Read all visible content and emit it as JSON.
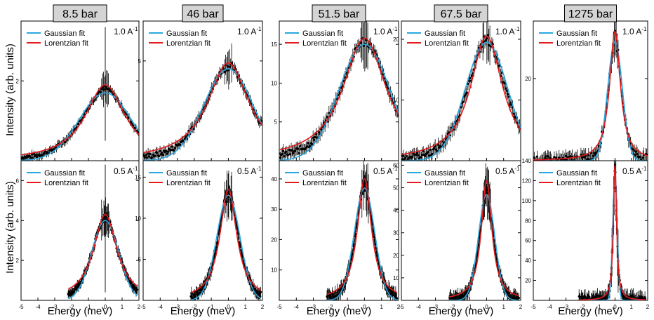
{
  "ylabel": "Intensity (arb. units)",
  "xlabel": "Energy (meV)",
  "legend": {
    "gaussian": "Gaussian fit",
    "lorentzian": "Lorentzian fit"
  },
  "colors": {
    "gaussian": "#29a8e0",
    "lorentzian": "#e41a1c",
    "data": "#000000",
    "header_bg": "#d4d4d4"
  },
  "chart_data": [
    {
      "type": "line",
      "pressure": "8.5 bar",
      "q": "1.0 A",
      "q_exp": "-1",
      "xlim": [
        -5,
        2
      ],
      "xticks": [
        -5,
        -4,
        -3,
        -2,
        -1,
        0,
        1,
        2
      ],
      "ylim": [
        0,
        3.5
      ],
      "yticks": [
        2
      ],
      "gauss_peak": 1.7,
      "gauss_sigma": 1.55,
      "lor_peak": 1.9,
      "lor_gamma": 1.45,
      "data_x_range": [
        -5,
        2
      ]
    },
    {
      "type": "line",
      "pressure": "46 bar",
      "q": "1.0 A",
      "q_exp": "-1",
      "xlim": [
        -5,
        2
      ],
      "xticks": [
        -5,
        -4,
        -3,
        -2,
        -1,
        0,
        1,
        2
      ],
      "ylim": [
        0,
        7
      ],
      "yticks": [
        5
      ],
      "gauss_peak": 4.6,
      "gauss_sigma": 1.45,
      "lor_peak": 4.9,
      "lor_gamma": 1.5,
      "data_x_range": [
        -5,
        2
      ]
    },
    {
      "type": "line",
      "pressure": "51.5 bar",
      "q": "1.0 A",
      "q_exp": "-1",
      "xlim": [
        -5,
        2
      ],
      "xticks": [
        -5,
        -4,
        -3,
        -2,
        -1,
        0,
        1,
        2
      ],
      "ylim": [
        0,
        18
      ],
      "yticks": [
        5,
        10,
        15
      ],
      "gauss_peak": 15.0,
      "gauss_sigma": 1.5,
      "lor_peak": 15.8,
      "lor_gamma": 1.55,
      "data_x_range": [
        -5,
        2
      ]
    },
    {
      "type": "line",
      "pressure": "67.5 bar",
      "q": "1.0 A",
      "q_exp": "-1",
      "xlim": [
        -5,
        2
      ],
      "xticks": [
        -5,
        -4,
        -3,
        -2,
        -1,
        0,
        1,
        2
      ],
      "ylim": [
        0,
        23
      ],
      "yticks": [
        10,
        20
      ],
      "gauss_peak": 19.5,
      "gauss_sigma": 1.25,
      "lor_peak": 20.5,
      "lor_gamma": 1.15,
      "data_x_range": [
        -5,
        2
      ]
    },
    {
      "type": "line",
      "pressure": "1275 bar",
      "q": "1.0 A",
      "q_exp": "-1",
      "xlim": [
        -5,
        2
      ],
      "xticks": [
        -5,
        -4,
        -3,
        -2,
        -1,
        0,
        1,
        2
      ],
      "ylim": [
        0,
        34
      ],
      "yticks": [
        20
      ],
      "gauss_peak": 29.0,
      "gauss_sigma": 0.45,
      "lor_peak": 31.5,
      "lor_gamma": 0.4,
      "data_x_range": [
        -5,
        2
      ]
    },
    {
      "type": "line",
      "pressure": "8.5 bar",
      "q": "0.5 A",
      "q_exp": "-1",
      "xlim": [
        -5,
        2
      ],
      "xticks": [
        -5,
        -4,
        -3,
        -2,
        -1,
        0,
        1,
        2
      ],
      "ylim": [
        0,
        7
      ],
      "yticks": [
        2,
        4,
        6
      ],
      "gauss_peak": 4.0,
      "gauss_sigma": 0.8,
      "lor_peak": 4.3,
      "lor_gamma": 0.85,
      "data_x_range": [
        -2.2,
        1.9
      ]
    },
    {
      "type": "line",
      "pressure": "46 bar",
      "q": "0.5 A",
      "q_exp": "-1",
      "xlim": [
        -5,
        2
      ],
      "xticks": [
        -5,
        -4,
        -3,
        -2,
        -1,
        0,
        1,
        2
      ],
      "ylim": [
        0,
        17
      ],
      "yticks": [
        5,
        10,
        15
      ],
      "gauss_peak": 12.8,
      "gauss_sigma": 0.68,
      "lor_peak": 13.5,
      "lor_gamma": 0.6,
      "data_x_range": [
        -2.2,
        1.9
      ]
    },
    {
      "type": "line",
      "pressure": "51.5 bar",
      "q": "0.5 A",
      "q_exp": "-1",
      "xlim": [
        -5,
        2
      ],
      "xticks": [
        -5,
        -4,
        -3,
        -2,
        -1,
        0,
        1,
        2
      ],
      "ylim": [
        0,
        46
      ],
      "yticks": [
        10,
        20,
        30,
        40
      ],
      "gauss_peak": 37.0,
      "gauss_sigma": 0.6,
      "lor_peak": 40.0,
      "lor_gamma": 0.5,
      "data_x_range": [
        -2.2,
        1.9
      ]
    },
    {
      "type": "line",
      "pressure": "67.5 bar",
      "q": "0.5 A",
      "q_exp": "-1",
      "xlim": [
        -5,
        2
      ],
      "xticks": [
        -5,
        -4,
        -3,
        -2,
        -1,
        0,
        1,
        2
      ],
      "ylim": [
        0,
        62
      ],
      "yticks": [
        10,
        20,
        30,
        40,
        50,
        60
      ],
      "gauss_peak": 47.0,
      "gauss_sigma": 0.48,
      "lor_peak": 53.0,
      "lor_gamma": 0.38,
      "data_x_range": [
        -2.2,
        1.9
      ]
    },
    {
      "type": "line",
      "pressure": "1275 bar",
      "q": "0.5 A",
      "q_exp": "-1",
      "xlim": [
        -5,
        2
      ],
      "xticks": [
        -5,
        -4,
        -3,
        -2,
        -1,
        0,
        1,
        2
      ],
      "ylim": [
        0,
        140
      ],
      "yticks": [
        20,
        40,
        60,
        80,
        100,
        120,
        140
      ],
      "gauss_peak": 125.0,
      "gauss_sigma": 0.14,
      "lor_peak": 135.0,
      "lor_gamma": 0.12,
      "data_x_range": [
        -2.2,
        1.9
      ]
    }
  ]
}
